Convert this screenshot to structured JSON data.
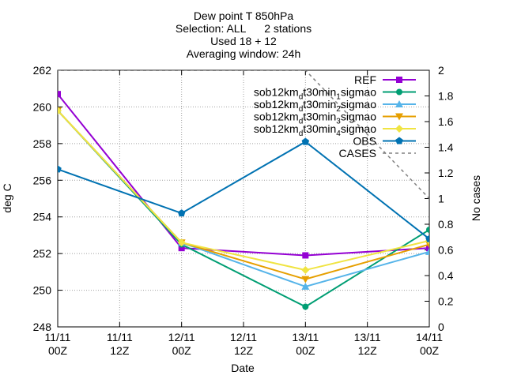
{
  "chart_data": {
    "type": "line",
    "title_lines": [
      "Dew point T 850hPa",
      "Selection: ALL      2 stations",
      "Used 18 + 12",
      "Averaging window: 24h"
    ],
    "xlabel": "Date",
    "ylabel": "deg C",
    "y2label": "No cases",
    "ylim": [
      248,
      262
    ],
    "y2lim": [
      0,
      2
    ],
    "yticks": [
      248,
      250,
      252,
      254,
      256,
      258,
      260,
      262
    ],
    "y2ticks": [
      0,
      0.2,
      0.4,
      0.6,
      0.8,
      1,
      1.2,
      1.4,
      1.6,
      1.8,
      2
    ],
    "y2tick_labels": [
      "0",
      "0.2",
      "0.4",
      "0.6",
      "0.8",
      "1",
      "1.2",
      "1.4",
      "1.6",
      "1.8",
      "2"
    ],
    "xlim": [
      0,
      72
    ],
    "xticks": [
      {
        "x": 0,
        "line1": "11/11",
        "line2": "00Z"
      },
      {
        "x": 12,
        "line1": "11/11",
        "line2": "12Z"
      },
      {
        "x": 24,
        "line1": "12/11",
        "line2": "00Z"
      },
      {
        "x": 36,
        "line1": "12/11",
        "line2": "12Z"
      },
      {
        "x": 48,
        "line1": "13/11",
        "line2": "00Z"
      },
      {
        "x": 60,
        "line1": "13/11",
        "line2": "12Z"
      },
      {
        "x": 72,
        "line1": "14/11",
        "line2": "00Z"
      }
    ],
    "grid": true,
    "legend_position": "top-right",
    "series": [
      {
        "name": "REF",
        "sub": "",
        "suffix": "",
        "color": "#9400d3",
        "marker": "square",
        "axis": "y",
        "x": [
          0,
          24,
          48,
          72
        ],
        "values": [
          260.7,
          252.3,
          251.9,
          252.3
        ]
      },
      {
        "name": "sob12km",
        "sub": "d",
        "suffix": "t30min",
        "sub2": "1",
        "suffix2": "sigmao",
        "color": "#009e73",
        "marker": "circle",
        "axis": "y",
        "x": [
          0,
          24,
          48,
          72
        ],
        "values": [
          259.8,
          252.5,
          249.1,
          253.3
        ]
      },
      {
        "name": "sob12km",
        "sub": "d",
        "suffix": "t30min",
        "sub2": "2",
        "suffix2": "sigmao",
        "color": "#56b4e9",
        "marker": "triangle",
        "axis": "y",
        "x": [
          0,
          24,
          48,
          72
        ],
        "values": [
          259.8,
          252.6,
          250.2,
          252.1
        ]
      },
      {
        "name": "sob12km",
        "sub": "d",
        "suffix": "t30min",
        "sub2": "3",
        "suffix2": "sigmao",
        "color": "#e69f00",
        "marker": "triangle-down",
        "axis": "y",
        "x": [
          0,
          24,
          48,
          72
        ],
        "values": [
          259.8,
          252.6,
          250.6,
          252.5
        ]
      },
      {
        "name": "sob12km",
        "sub": "d",
        "suffix": "t30min",
        "sub2": "4",
        "suffix2": "sigmao",
        "color": "#f0e442",
        "marker": "diamond",
        "axis": "y",
        "x": [
          0,
          24,
          48,
          72
        ],
        "values": [
          259.8,
          252.6,
          251.1,
          252.7
        ]
      },
      {
        "name": "OBS",
        "sub": "",
        "suffix": "",
        "color": "#0072b2",
        "marker": "pentagon",
        "axis": "y",
        "x": [
          0,
          24,
          48,
          72
        ],
        "values": [
          256.6,
          254.2,
          258.1,
          252.8
        ]
      },
      {
        "name": "CASES",
        "sub": "",
        "suffix": "",
        "color": "#808080",
        "marker": "none",
        "dashed": true,
        "axis": "y2",
        "x": [
          0,
          48,
          72
        ],
        "values": [
          2,
          2,
          1
        ]
      }
    ]
  }
}
